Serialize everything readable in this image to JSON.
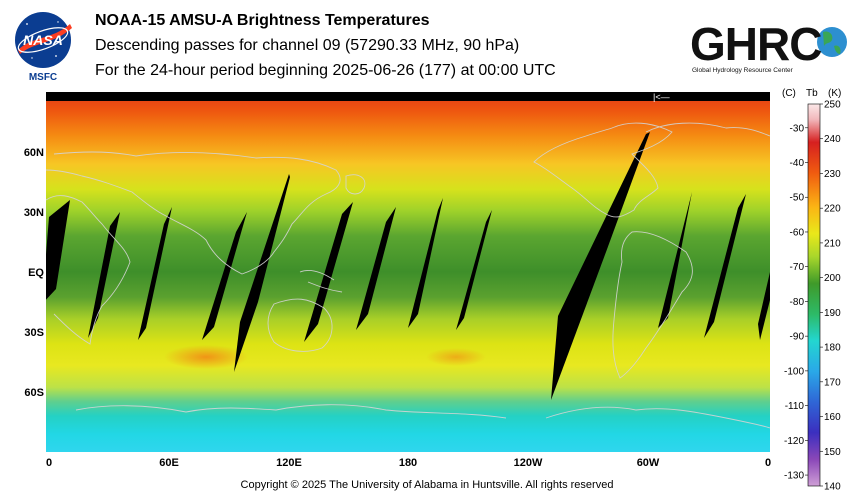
{
  "header": {
    "title": "NOAA-15 AMSU-A Brightness Temperatures",
    "subtitle": "Descending passes for channel 09 (57290.33 MHz, 90 hPa)",
    "period": "For the 24-hour period beginning 2025-06-26 (177) at 00:00 UTC"
  },
  "logos": {
    "nasa": {
      "wordmark": "NASA",
      "center": "MSFC"
    },
    "ghrc": {
      "wordmark": "GHRC",
      "tagline": "Global Hydrology Resource Center"
    }
  },
  "map": {
    "lat_labels": [
      "60N",
      "30N",
      "EQ",
      "30S",
      "60S"
    ],
    "lon_labels": [
      "0",
      "60E",
      "120E",
      "180",
      "120W",
      "60W",
      "0"
    ],
    "pole_marker": "|<—"
  },
  "colorbar": {
    "header_c": "(C)",
    "header_tb": "Tb",
    "header_k": "(K)",
    "celsius_ticks": [
      "-30",
      "-40",
      "-50",
      "-60",
      "-70",
      "-80",
      "-90",
      "-100",
      "-110",
      "-120",
      "-130"
    ],
    "kelvin_ticks": [
      "250",
      "240",
      "230",
      "220",
      "210",
      "200",
      "190",
      "180",
      "170",
      "160",
      "150",
      "140"
    ],
    "range_k": [
      140,
      250
    ]
  },
  "footer": {
    "copyright": "Copyright © 2025 The University of Alabama in Huntsville.  All rights reserved"
  }
}
